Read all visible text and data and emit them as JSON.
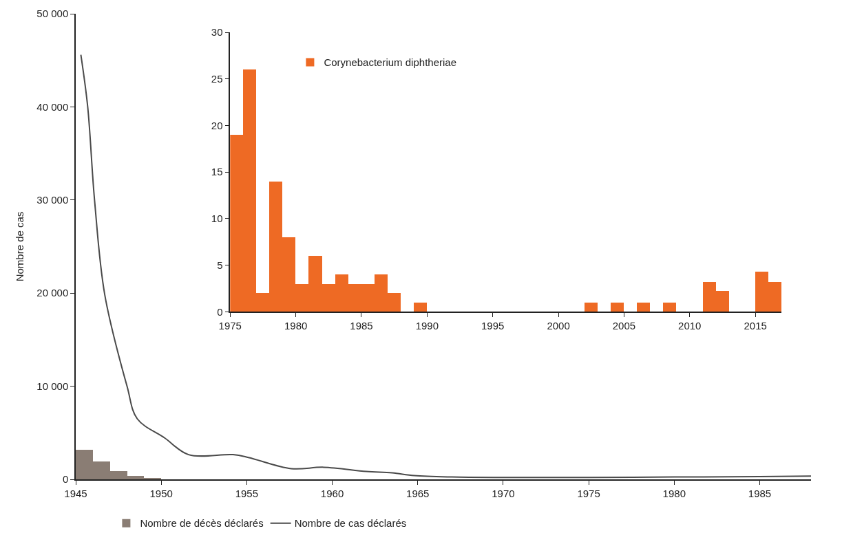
{
  "chart_data": [
    {
      "type": "line",
      "ylabel": "Nombre de cas",
      "xlim": [
        1945,
        1988
      ],
      "xticks": [
        1945,
        1950,
        1955,
        1960,
        1965,
        1970,
        1975,
        1980,
        1985
      ],
      "ylim": [
        0,
        50000
      ],
      "yticks": [
        {
          "value": 0,
          "label": "0"
        },
        {
          "value": 10000,
          "label": "10 000"
        },
        {
          "value": 20000,
          "label": "20 000"
        },
        {
          "value": 30000,
          "label": "30 000"
        },
        {
          "value": 40000,
          "label": "40 000"
        },
        {
          "value": 50000,
          "label": "50 000"
        }
      ],
      "legend": "bottom",
      "series": [
        {
          "name": "Nombre de décès déclarés",
          "type": "histogram",
          "color": "#8a7d74",
          "bins": [
            1945,
            1946,
            1947,
            1948,
            1949,
            1950
          ],
          "values": [
            3200,
            1900,
            850,
            380,
            150
          ]
        },
        {
          "name": "Nombre de cas déclarés",
          "type": "line",
          "color": "#4a4a4a",
          "x": [
            1945.3,
            1945.7,
            1946.1,
            1946.7,
            1948.0,
            1948.6,
            1950.2,
            1951.6,
            1954.2,
            1955.1,
            1957.6,
            1959.5,
            1962.0,
            1963.5,
            1964.8,
            1967,
            1970,
            1975,
            1980,
            1985,
            1988
          ],
          "values": [
            45600,
            40000,
            30000,
            19800,
            10000,
            6500,
            4450,
            2650,
            2650,
            2350,
            1150,
            1300,
            850,
            700,
            400,
            250,
            200,
            200,
            250,
            300,
            350
          ]
        }
      ]
    },
    {
      "type": "histogram",
      "xlim": [
        1975,
        2017
      ],
      "xticks": [
        1975,
        1980,
        1985,
        1990,
        1995,
        2000,
        2005,
        2010,
        2015
      ],
      "ylim": [
        0,
        30
      ],
      "yticks": [
        0,
        5,
        10,
        15,
        20,
        25,
        30
      ],
      "legend": "top left",
      "bins": [
        1975,
        1976,
        1977,
        1978,
        1979,
        1980,
        1981,
        1982,
        1983,
        1984,
        1985,
        1986,
        1987,
        1988,
        1989,
        1990,
        1991,
        1992,
        1993,
        1994,
        1995,
        1996,
        1997,
        1998,
        1999,
        2000,
        2001,
        2002,
        2003,
        2004,
        2005,
        2006,
        2007,
        2008,
        2009,
        2010,
        2011,
        2012,
        2013,
        2014,
        2015,
        2016,
        2017
      ],
      "series": [
        {
          "name": "Corynebacterium diphtheriae",
          "color": "#ee6a24",
          "values": [
            19,
            26,
            2,
            14,
            8,
            3,
            6,
            3,
            4,
            3,
            3,
            4,
            2,
            0,
            1,
            0,
            0,
            0,
            0,
            0,
            0,
            0,
            0,
            0,
            0,
            0,
            0,
            1,
            0,
            1,
            0,
            1,
            0,
            1,
            0,
            0,
            3.2,
            2.2,
            0,
            0,
            4.3,
            3.2
          ]
        }
      ]
    }
  ]
}
